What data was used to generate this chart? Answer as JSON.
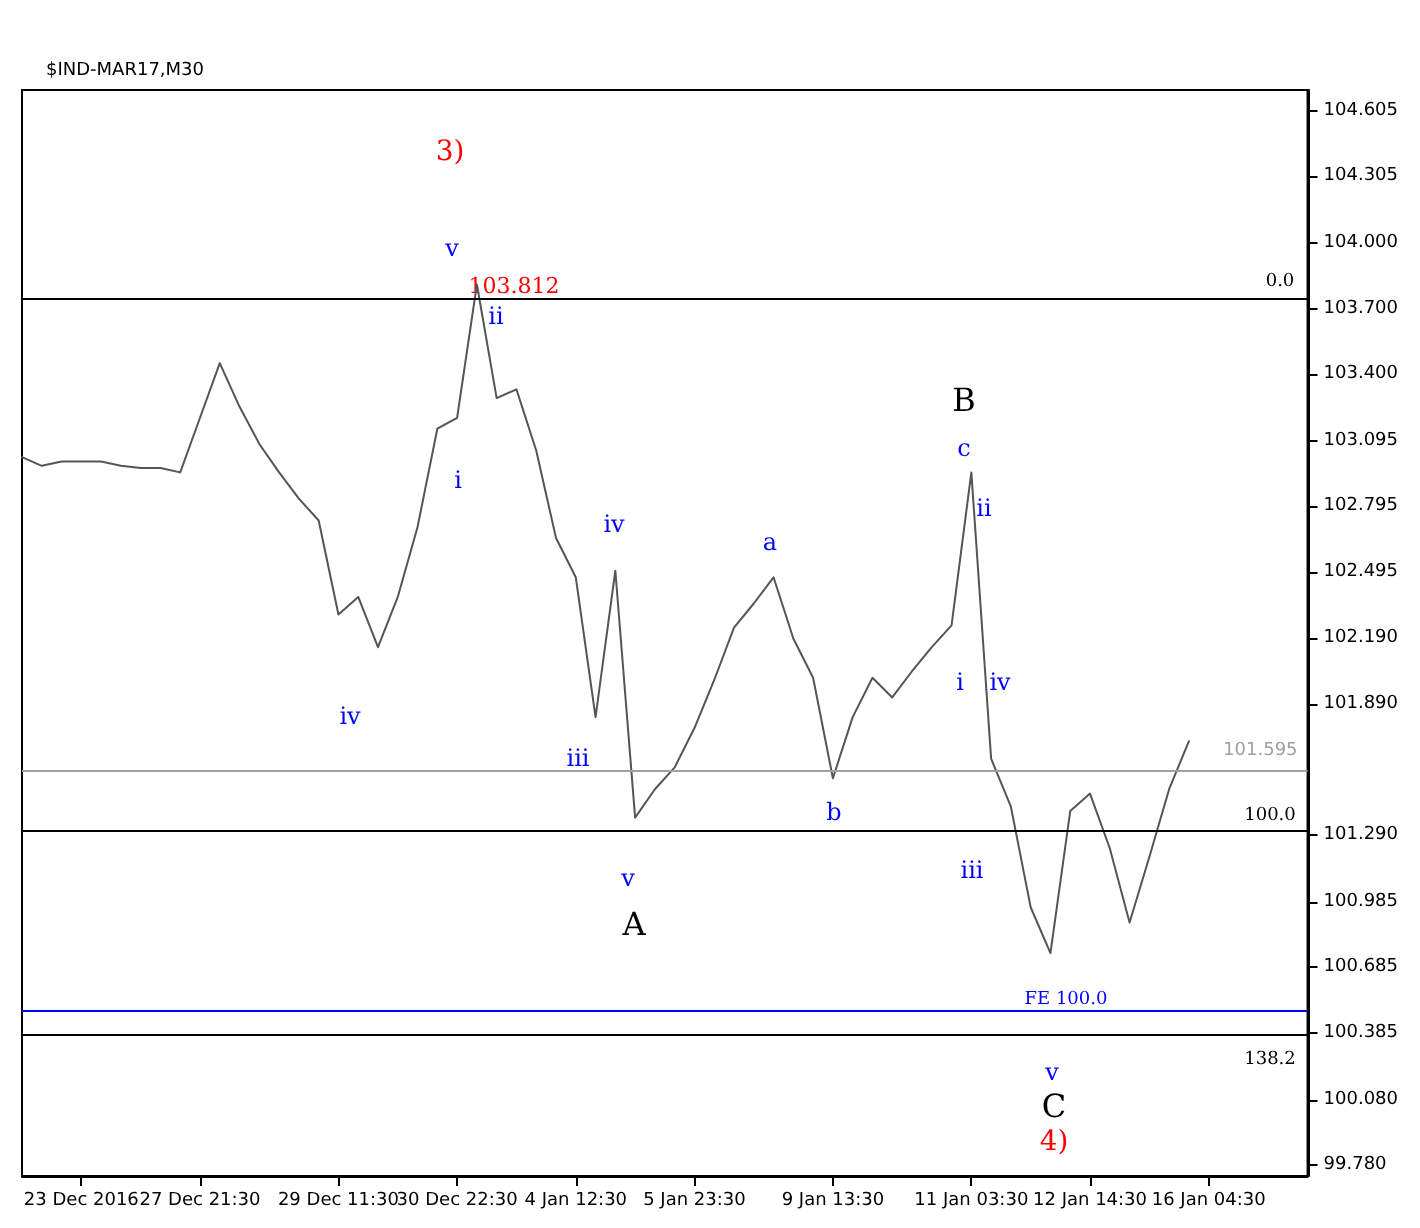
{
  "chart_data": {
    "type": "line",
    "title": "$IND-MAR17,M30",
    "categories": [
      null,
      null,
      null,
      "23 Dec 2016",
      null,
      null,
      null,
      null,
      null,
      "27 Dec 21:30",
      null,
      null,
      null,
      null,
      null,
      null,
      "29 Dec 11:30",
      null,
      null,
      null,
      null,
      null,
      "30 Dec 22:30",
      null,
      null,
      null,
      null,
      null,
      "4 Jan 12:30",
      null,
      null,
      null,
      null,
      null,
      "5 Jan 23:30",
      null,
      null,
      null,
      null,
      null,
      null,
      "9 Jan 13:30",
      null,
      null,
      null,
      null,
      null,
      null,
      "11 Jan 03:30",
      null,
      null,
      null,
      null,
      null,
      "12 Jan 14:30",
      null,
      null,
      null,
      null,
      null,
      "16 Jan 04:30",
      null,
      null,
      null,
      null,
      null
    ],
    "series": [
      {
        "color": "#555555",
        "values": [
          103.02,
          102.98,
          103.0,
          103.0,
          103.0,
          102.98,
          102.97,
          102.97,
          102.95,
          103.2,
          103.45,
          103.25,
          103.08,
          102.95,
          102.83,
          102.73,
          102.3,
          102.38,
          102.15,
          102.38,
          102.7,
          103.15,
          103.2,
          103.81,
          103.29,
          103.33,
          103.05,
          102.65,
          102.47,
          101.83,
          102.5,
          101.37,
          101.5,
          101.6,
          101.78,
          102.0,
          102.24,
          102.35,
          102.47,
          102.19,
          102.01,
          101.55,
          101.83,
          102.01,
          101.92,
          102.04,
          102.15,
          102.25,
          102.95,
          101.64,
          101.42,
          100.96,
          100.75,
          101.4,
          101.48,
          101.23,
          100.89,
          101.19,
          101.5,
          101.72,
          null,
          null,
          null,
          null,
          null,
          null
        ]
      }
    ],
    "ylim": [
      99.73,
      104.7
    ],
    "yticks": [
      {
        "value": 104.605,
        "label": "104.605"
      },
      {
        "value": 104.305,
        "label": "104.305"
      },
      {
        "value": 104.0,
        "label": "104.000"
      },
      {
        "value": 103.7,
        "label": "103.700"
      },
      {
        "value": 103.4,
        "label": "103.400"
      },
      {
        "value": 103.095,
        "label": "103.095"
      },
      {
        "value": 102.795,
        "label": "102.795"
      },
      {
        "value": 102.495,
        "label": "102.495"
      },
      {
        "value": 102.19,
        "label": "102.190"
      },
      {
        "value": 101.89,
        "label": "101.890"
      },
      {
        "value": 101.29,
        "label": "101.290"
      },
      {
        "value": 100.985,
        "label": "100.985"
      },
      {
        "value": 100.685,
        "label": "100.685"
      },
      {
        "value": 100.385,
        "label": "100.385"
      },
      {
        "value": 100.08,
        "label": "100.080"
      },
      {
        "value": 99.78,
        "label": "99.780"
      }
    ],
    "ref_lines": [
      {
        "axis": "y",
        "value": 101.595,
        "label": "101.595",
        "color": "#a0a0a0"
      },
      {
        "axis": "y",
        "value": 103.75,
        "color": "#000000"
      },
      {
        "axis": "y",
        "value": 101.31,
        "color": "#000000"
      },
      {
        "axis": "y",
        "value": 100.49,
        "color": "#0000ff"
      },
      {
        "axis": "y",
        "value": 100.38,
        "color": "#000000"
      }
    ],
    "annotations": [
      "3)",
      "103.812",
      "v",
      "ii",
      "i",
      "iv",
      "iv",
      "iii",
      "v",
      "A",
      "a",
      "b",
      "B",
      "c",
      "ii",
      "i",
      "iv",
      "iii",
      "v",
      "C",
      "4)",
      "0.0",
      "100.0",
      "FE 100.0",
      "138.2"
    ]
  }
}
